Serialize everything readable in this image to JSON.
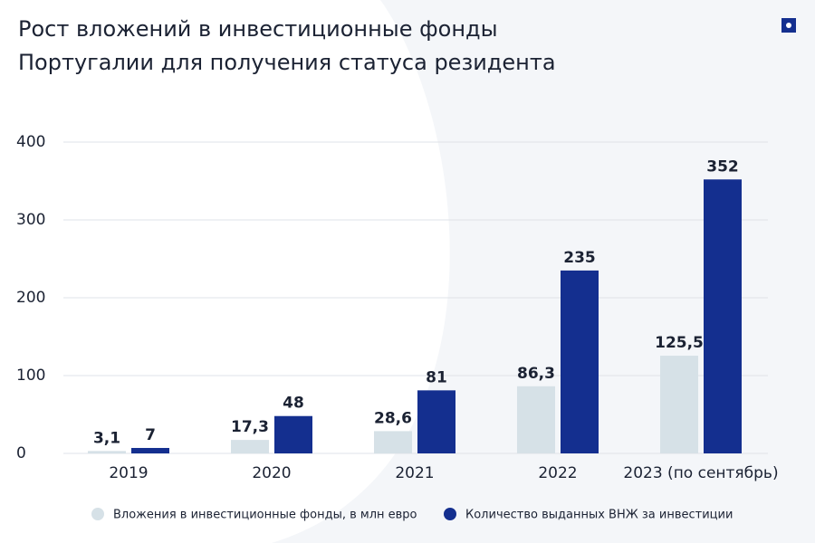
{
  "chart_data": {
    "type": "bar",
    "title": [
      "Рост вложений в инвестиционные фонды",
      "Португалии для получения статуса резидента"
    ],
    "categories": [
      "2019",
      "2020",
      "2021",
      "2022",
      "2023 (по сентябрь)"
    ],
    "series": [
      {
        "name": "Вложения в инвестиционные фонды, в млн евро",
        "color": "#d6e1e7",
        "values": [
          3.1,
          17.3,
          28.6,
          86.3,
          125.5
        ],
        "value_labels": [
          "3,1",
          "17,3",
          "28,6",
          "86,3",
          "125,5"
        ]
      },
      {
        "name": "Количество выданных ВНЖ за инвестиции",
        "color": "#142f8f",
        "values": [
          7,
          48,
          81,
          235,
          352
        ]
      }
    ],
    "ylim": [
      0,
      400
    ],
    "yticks": [
      0,
      100,
      200,
      300,
      400
    ],
    "grid": true
  }
}
